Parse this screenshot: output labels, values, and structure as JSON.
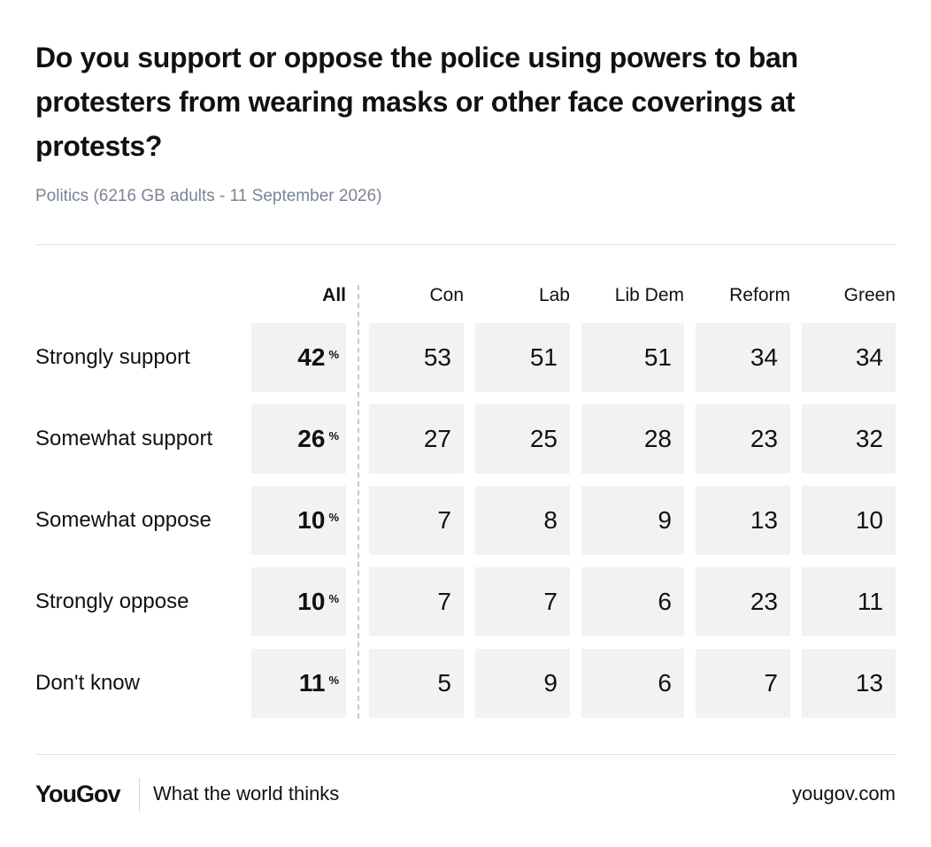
{
  "chart_data": {
    "type": "table",
    "title": "Do you support or oppose the police using powers to ban protesters from wearing masks or other face coverings at protests?",
    "subtitle": "Politics (6216 GB adults - 11 September 2026)",
    "columns": [
      "All",
      "Con",
      "Lab",
      "Lib Dem",
      "Reform",
      "Green"
    ],
    "unit": "%",
    "rows": [
      {
        "label": "Strongly support",
        "values": [
          42,
          53,
          51,
          51,
          34,
          34
        ]
      },
      {
        "label": "Somewhat support",
        "values": [
          26,
          27,
          25,
          28,
          23,
          32
        ]
      },
      {
        "label": "Somewhat oppose",
        "values": [
          10,
          7,
          8,
          9,
          13,
          10
        ]
      },
      {
        "label": "Strongly oppose",
        "values": [
          10,
          7,
          7,
          6,
          23,
          11
        ]
      },
      {
        "label": "Don't know",
        "values": [
          11,
          5,
          9,
          6,
          7,
          13
        ]
      }
    ]
  },
  "footer": {
    "logo": "YouGov",
    "tagline": "What the world thinks",
    "site": "yougov.com"
  }
}
